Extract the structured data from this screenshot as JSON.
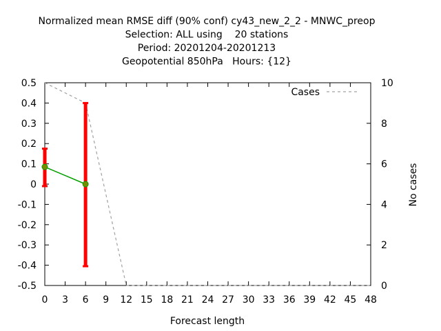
{
  "chart_data": {
    "type": "line",
    "title_lines": [
      "Normalized mean RMSE diff (90% conf) cy43_new_2_2 - MNWC_preop",
      "Selection: ALL using    20 stations",
      "Period: 20201204-20201213",
      "Geopotential 850hPa   Hours: {12}"
    ],
    "xlabel": "Forecast length",
    "ylabel": "",
    "y2label": "No cases",
    "xlim": [
      0,
      48
    ],
    "ylim": [
      -0.5,
      0.5
    ],
    "y2lim": [
      0,
      10
    ],
    "x_ticks": [
      "0",
      "3",
      "6",
      "9",
      "12",
      "15",
      "18",
      "21",
      "24",
      "27",
      "30",
      "33",
      "36",
      "39",
      "42",
      "45",
      "48"
    ],
    "y_ticks": [
      "0.5",
      "0.4",
      "0.3",
      "0.2",
      "0.1",
      "0",
      "-0.1",
      "-0.2",
      "-0.3",
      "-0.4",
      "-0.5"
    ],
    "y2_ticks": [
      "10",
      "8",
      "6",
      "4",
      "2",
      "0"
    ],
    "legend": {
      "entry": "Cases",
      "placement": "top-right"
    },
    "series": [
      {
        "role": "rmse-diff",
        "color": "#00a000",
        "x": [
          0,
          6
        ],
        "y": [
          0.085,
          0.0
        ],
        "err_low": [
          -0.01,
          -0.405
        ],
        "err_high": [
          0.175,
          0.4
        ],
        "err_color": "#ff0000"
      },
      {
        "role": "cases",
        "axis": "y2",
        "color": "#a0a0a0",
        "x": [
          0,
          6,
          12,
          15,
          18,
          21,
          24,
          27,
          30,
          33,
          36,
          39,
          42,
          45,
          48
        ],
        "y": [
          10,
          9,
          0,
          0,
          0,
          0,
          0,
          0,
          0,
          0,
          0,
          0,
          0,
          0,
          0
        ]
      }
    ]
  }
}
